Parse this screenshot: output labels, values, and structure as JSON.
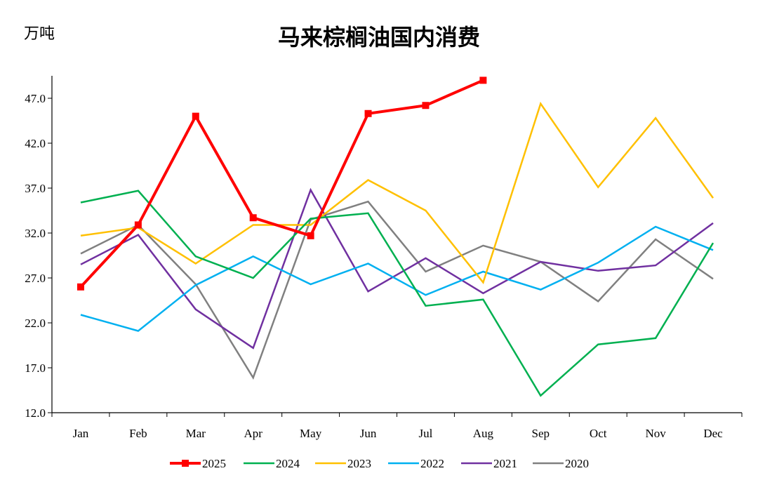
{
  "chart_data": {
    "type": "line",
    "title": "马来棕榈油国内消费",
    "ylabel": "万吨",
    "xlabel": "",
    "categories": [
      "Jan",
      "Feb",
      "Mar",
      "Apr",
      "May",
      "Jun",
      "Jul",
      "Aug",
      "Sep",
      "Oct",
      "Nov",
      "Dec"
    ],
    "ylim": [
      12.0,
      49.5
    ],
    "yticks": [
      "12.0",
      "17.0",
      "22.0",
      "27.0",
      "32.0",
      "37.0",
      "42.0",
      "47.0"
    ],
    "grid": false,
    "legend_position": "bottom",
    "series": [
      {
        "name": "2025",
        "color": "#ff0000",
        "marker": "square",
        "values": [
          26.0,
          32.9,
          45.0,
          33.7,
          31.7,
          45.3,
          46.2,
          49.0,
          null,
          null,
          null,
          null
        ]
      },
      {
        "name": "2024",
        "color": "#00b050",
        "values": [
          35.4,
          36.7,
          29.4,
          27.0,
          33.6,
          34.2,
          23.9,
          24.6,
          13.9,
          19.6,
          20.3,
          30.9
        ]
      },
      {
        "name": "2023",
        "color": "#ffc000",
        "values": [
          31.7,
          32.6,
          28.6,
          32.9,
          32.9,
          37.9,
          34.5,
          26.5,
          46.4,
          37.1,
          44.8,
          35.9
        ]
      },
      {
        "name": "2022",
        "color": "#00b0f0",
        "values": [
          22.9,
          21.1,
          26.2,
          29.4,
          26.3,
          28.6,
          25.1,
          27.7,
          25.7,
          28.7,
          32.7,
          30.1
        ]
      },
      {
        "name": "2021",
        "color": "#7030a0",
        "values": [
          28.5,
          31.8,
          23.5,
          19.2,
          36.8,
          25.5,
          29.2,
          25.3,
          28.8,
          27.8,
          28.4,
          33.1
        ]
      },
      {
        "name": "2020",
        "color": "#808080",
        "values": [
          29.7,
          32.9,
          26.3,
          15.9,
          33.5,
          35.5,
          27.7,
          30.6,
          28.8,
          24.4,
          31.3,
          26.9
        ]
      }
    ]
  }
}
